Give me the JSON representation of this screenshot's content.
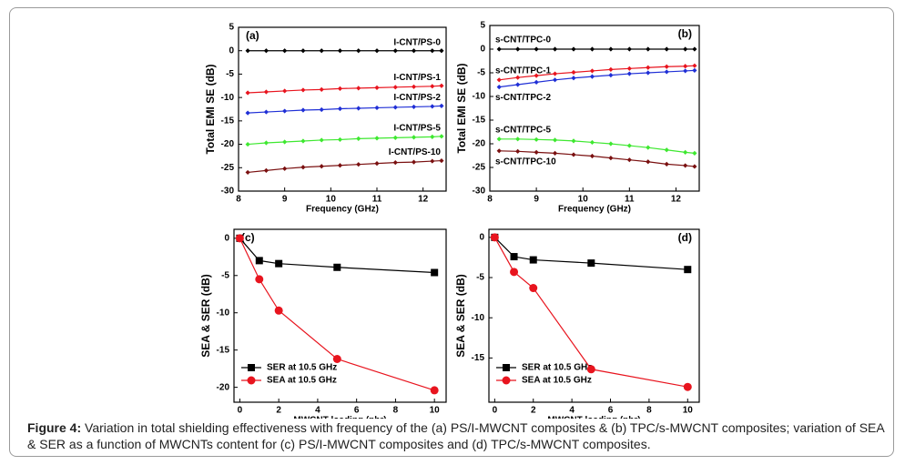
{
  "chart_data": [
    {
      "type": "line",
      "panel": "(a)",
      "xlabel": "Frequency (GHz)",
      "ylabel": "Total EMI SE (dB)",
      "legend": "inline",
      "x": [
        8.2,
        8.6,
        9.0,
        9.4,
        9.8,
        10.2,
        10.6,
        11.0,
        11.4,
        11.8,
        12.2,
        12.4
      ],
      "xlim": [
        8,
        12.5
      ],
      "xticks": [
        8,
        9,
        10,
        11,
        12
      ],
      "ylim": [
        -30,
        5
      ],
      "yticks": [
        -30,
        -25,
        -20,
        -15,
        -10,
        -5,
        0,
        5
      ],
      "series": [
        {
          "name": "I-CNT/PS-0",
          "color": "#000000",
          "marker": "diamond",
          "values": [
            0,
            0,
            0,
            0,
            0,
            0,
            0,
            0,
            0,
            0,
            0,
            0
          ]
        },
        {
          "name": "I-CNT/PS-1",
          "color": "#e8141e",
          "marker": "diamond",
          "values": [
            -9.0,
            -8.8,
            -8.6,
            -8.4,
            -8.3,
            -8.1,
            -8.0,
            -7.9,
            -7.8,
            -7.7,
            -7.6,
            -7.5
          ]
        },
        {
          "name": "I-CNT/PS-2",
          "color": "#1f2fd6",
          "marker": "diamond",
          "values": [
            -13.3,
            -13.1,
            -12.9,
            -12.7,
            -12.6,
            -12.4,
            -12.3,
            -12.2,
            -12.1,
            -12.0,
            -11.9,
            -11.8
          ]
        },
        {
          "name": "I-CNT/PS-5",
          "color": "#3ee830",
          "marker": "diamond",
          "values": [
            -20.0,
            -19.7,
            -19.5,
            -19.3,
            -19.1,
            -19.0,
            -18.8,
            -18.7,
            -18.6,
            -18.5,
            -18.4,
            -18.3
          ]
        },
        {
          "name": "I-CNT/PS-10",
          "color": "#7a1010",
          "marker": "diamond",
          "values": [
            -26.0,
            -25.6,
            -25.2,
            -24.9,
            -24.7,
            -24.5,
            -24.3,
            -24.1,
            -23.9,
            -23.8,
            -23.6,
            -23.5
          ]
        }
      ]
    },
    {
      "type": "line",
      "panel": "(b)",
      "xlabel": "Frequency (GHz)",
      "ylabel": "Total EMI SE (dB)",
      "legend": "inline",
      "x": [
        8.2,
        8.6,
        9.0,
        9.4,
        9.8,
        10.2,
        10.6,
        11.0,
        11.4,
        11.8,
        12.2,
        12.4
      ],
      "xlim": [
        8,
        12.5
      ],
      "xticks": [
        8,
        9,
        10,
        11,
        12
      ],
      "ylim": [
        -30,
        5
      ],
      "yticks": [
        -30,
        -25,
        -20,
        -15,
        -10,
        -5,
        0,
        5
      ],
      "series": [
        {
          "name": "s-CNT/TPC-0",
          "color": "#000000",
          "marker": "diamond",
          "values": [
            0,
            0,
            0,
            0,
            0,
            0,
            0,
            0,
            0,
            0,
            0,
            0
          ]
        },
        {
          "name": "s-CNT/TPC-1",
          "color": "#e8141e",
          "marker": "diamond",
          "values": [
            -6.5,
            -6.0,
            -5.6,
            -5.2,
            -4.9,
            -4.6,
            -4.3,
            -4.1,
            -3.9,
            -3.7,
            -3.6,
            -3.5
          ]
        },
        {
          "name": "s-CNT/TPC-2",
          "color": "#1f2fd6",
          "marker": "diamond",
          "values": [
            -8.0,
            -7.5,
            -7.0,
            -6.5,
            -6.1,
            -5.8,
            -5.5,
            -5.2,
            -5.0,
            -4.8,
            -4.6,
            -4.5
          ]
        },
        {
          "name": "s-CNT/TPC-5",
          "color": "#3ee830",
          "marker": "diamond",
          "values": [
            -19.0,
            -19.0,
            -19.1,
            -19.2,
            -19.4,
            -19.7,
            -20.0,
            -20.4,
            -20.8,
            -21.3,
            -21.8,
            -22.0
          ]
        },
        {
          "name": "s-CNT/TPC-10",
          "color": "#7a1010",
          "marker": "diamond",
          "values": [
            -21.5,
            -21.6,
            -21.8,
            -22.0,
            -22.3,
            -22.6,
            -23.0,
            -23.4,
            -23.8,
            -24.3,
            -24.6,
            -24.8
          ]
        }
      ]
    },
    {
      "type": "line",
      "panel": "(c)",
      "xlabel": "MWCNT loading (phr)",
      "ylabel": "SEA & SER (dB)",
      "legend": "lower left",
      "x": [
        0,
        1,
        2,
        5,
        10
      ],
      "xlim": [
        -0.3,
        10.6
      ],
      "xticks": [
        0,
        2,
        4,
        6,
        8,
        10
      ],
      "ylim": [
        -22,
        1.2
      ],
      "yticks": [
        -20,
        -15,
        -10,
        -5,
        0
      ],
      "series": [
        {
          "name": "SER at 10.5 GHz",
          "color": "#000000",
          "marker": "square",
          "values": [
            0,
            -3.0,
            -3.4,
            -3.9,
            -4.6
          ]
        },
        {
          "name": "SEA at 10.5 GHz",
          "color": "#e8141e",
          "marker": "circle",
          "values": [
            0,
            -5.5,
            -9.7,
            -16.2,
            -20.4
          ]
        }
      ]
    },
    {
      "type": "line",
      "panel": "(d)",
      "xlabel": "MWCNT loading (phr)",
      "ylabel": "SEA & SER (dB)",
      "legend": "lower left",
      "x": [
        0,
        1,
        2,
        5,
        10
      ],
      "xlim": [
        -0.3,
        10.6
      ],
      "xticks": [
        0,
        2,
        4,
        6,
        8,
        10
      ],
      "ylim": [
        -20.5,
        1
      ],
      "yticks": [
        -15,
        -10,
        -5,
        0
      ],
      "series": [
        {
          "name": "SER at 10.5 GHz",
          "color": "#000000",
          "marker": "square",
          "values": [
            0,
            -2.4,
            -2.8,
            -3.2,
            -4.0
          ]
        },
        {
          "name": "SEA at 10.5 GHz",
          "color": "#e8141e",
          "marker": "circle",
          "values": [
            0,
            -4.3,
            -6.3,
            -16.4,
            -18.6
          ]
        }
      ]
    }
  ],
  "caption": {
    "label": "Figure 4:",
    "text": "Variation in total shielding effectiveness with frequency of the (a) PS/I-MWCNT composites & (b) TPC/s-MWCNT composites; variation of SEA & SER as a function of MWCNTs content for (c) PS/I-MWCNT composites and (d) TPC/s-MWCNT composites."
  }
}
